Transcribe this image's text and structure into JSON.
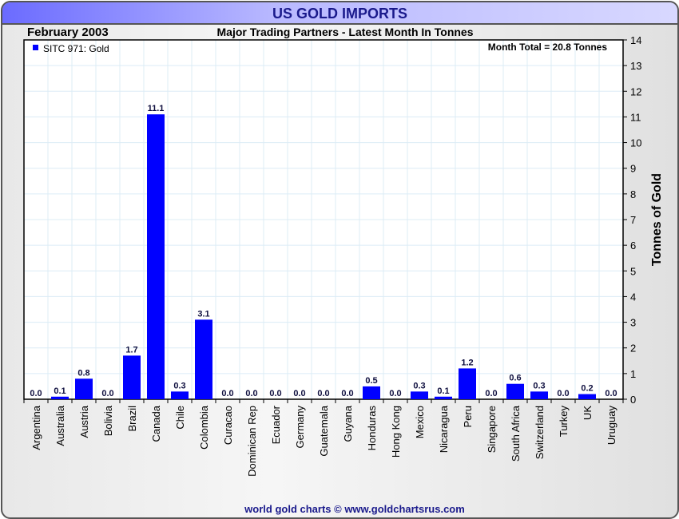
{
  "chart_data": {
    "type": "bar",
    "title": "US GOLD IMPORTS",
    "subtitle": "Major Trading Partners - Latest Month In Tonnes",
    "date_label": "February 2003",
    "legend": "SITC 971: Gold",
    "annotation": "Month Total = 20.8 Tonnes",
    "ylabel": "Tonnes of Gold",
    "ylim": [
      0,
      14
    ],
    "yticks": [
      0,
      1,
      2,
      3,
      4,
      5,
      6,
      7,
      8,
      9,
      10,
      11,
      12,
      13,
      14
    ],
    "grid": true,
    "categories": [
      "Argentina",
      "Australia",
      "Austria",
      "Bolivia",
      "Brazil",
      "Canada",
      "Chile",
      "Colombia",
      "Curacao",
      "Dominican Rep",
      "Ecuador",
      "Germany",
      "Guatemala",
      "Guyana",
      "Honduras",
      "Hong Kong",
      "Mexico",
      "Nicaragua",
      "Peru",
      "Singapore",
      "South Africa",
      "Switzerland",
      "Turkey",
      "UK",
      "Uruguay"
    ],
    "values": [
      0.0,
      0.1,
      0.8,
      0.0,
      1.7,
      11.1,
      0.3,
      3.1,
      0.0,
      0.0,
      0.0,
      0.0,
      0.0,
      0.0,
      0.5,
      0.0,
      0.3,
      0.1,
      1.2,
      0.0,
      0.6,
      0.3,
      0.0,
      0.2,
      0.0
    ],
    "bar_color": "#0000ff",
    "footer": "world gold charts © www.goldchartsrus.com"
  }
}
